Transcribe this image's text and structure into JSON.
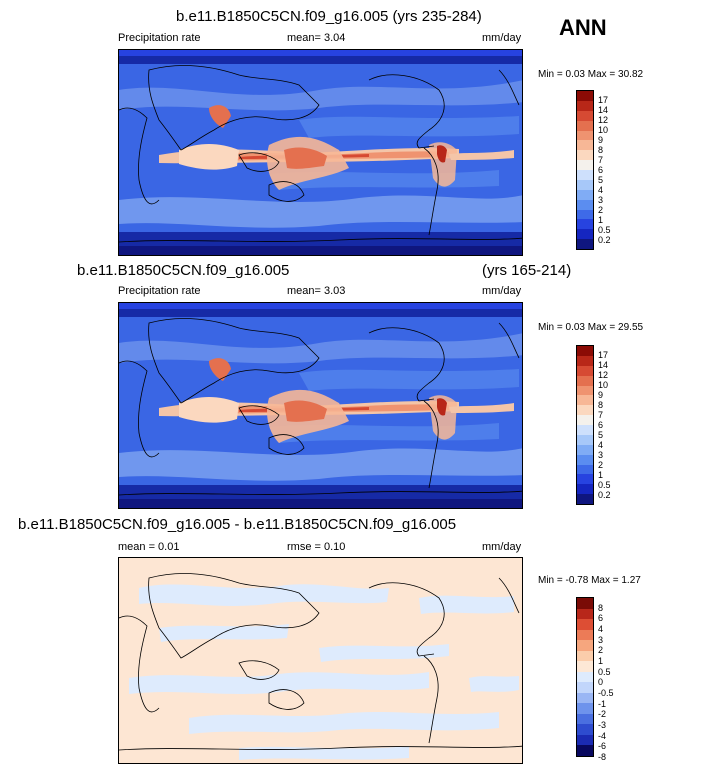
{
  "season": "ANN",
  "colors": {
    "precip": [
      "#0f167f",
      "#1526c0",
      "#2743e0",
      "#3e6ae8",
      "#5b8df0",
      "#80acf5",
      "#a7c8f9",
      "#cee0fc",
      "#f4f1ec",
      "#fbd8bf",
      "#f7b796",
      "#ef9370",
      "#e4704f",
      "#d64a33",
      "#b82718",
      "#8b0b05"
    ],
    "diff": [
      "#08085f",
      "#1b2bb3",
      "#2e4ccf",
      "#4a6fe0",
      "#6e93ec",
      "#9ab6f4",
      "#c2d6fb",
      "#deebfd",
      "#fde8d6",
      "#fbcdab",
      "#f6a67e",
      "#ec7b57",
      "#dd4e34",
      "#b8271a",
      "#7a0b06"
    ],
    "ocean_base": "#2f5fe6",
    "diff_base": "#fde6d3",
    "land": "#2f5fe6"
  },
  "panels": [
    {
      "title": "b.e11.B1850C5CN.f09_g16.005 (yrs 235-284)",
      "title_right": "",
      "left_label": "Precipitation rate",
      "mean_text": "mean=   3.04",
      "rmse_text": "",
      "units": "mm/day",
      "minmax": "Min =   0.03 Max =  30.82",
      "cbar_labels": [
        "17",
        "14",
        "12",
        "10",
        "9",
        "8",
        "7",
        "6",
        "5",
        "4",
        "3",
        "2",
        "1",
        "0.5",
        "0.2"
      ]
    },
    {
      "title": "b.e11.B1850C5CN.f09_g16.005",
      "title_right": "(yrs 165-214)",
      "left_label": "Precipitation rate",
      "mean_text": "mean=   3.03",
      "rmse_text": "",
      "units": "mm/day",
      "minmax": "Min =   0.03 Max =  29.55",
      "cbar_labels": [
        "17",
        "14",
        "12",
        "10",
        "9",
        "8",
        "7",
        "6",
        "5",
        "4",
        "3",
        "2",
        "1",
        "0.5",
        "0.2"
      ]
    },
    {
      "title": "b.e11.B1850C5CN.f09_g16.005 - b.e11.B1850C5CN.f09_g16.005",
      "title_right": "",
      "left_label": "mean =   0.01",
      "mean_text": "",
      "rmse_text": "rmse =   0.10",
      "units": "mm/day",
      "minmax": "Min =  -0.78 Max =   1.27",
      "cbar_labels": [
        "8",
        "6",
        "4",
        "3",
        "2",
        "1",
        "0.5",
        "0",
        "-0.5",
        "-1",
        "-2",
        "-3",
        "-4",
        "-6",
        "-8"
      ]
    }
  ]
}
